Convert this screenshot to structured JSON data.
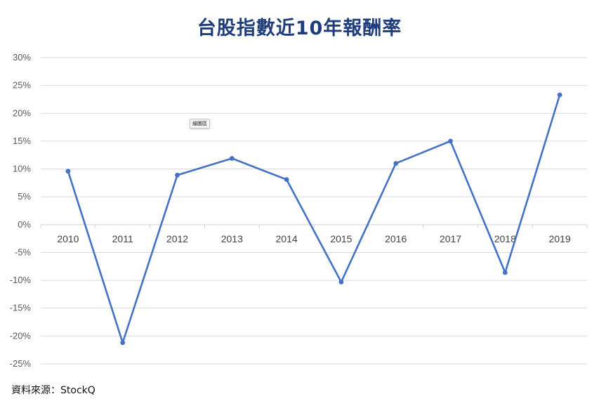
{
  "chart_data": {
    "type": "line",
    "title": "台股指數近10年報酬率",
    "categories": [
      "2010",
      "2011",
      "2012",
      "2013",
      "2014",
      "2015",
      "2016",
      "2017",
      "2018",
      "2019"
    ],
    "series": [
      {
        "values": [
          9.6,
          -21.2,
          8.9,
          11.9,
          8.1,
          -10.3,
          11.0,
          15.0,
          -8.6,
          23.3
        ]
      }
    ],
    "ylim": [
      -25,
      30
    ],
    "yticks": [
      30,
      25,
      20,
      15,
      10,
      5,
      0,
      -5,
      -10,
      -15,
      -20,
      -25
    ],
    "ytick_suffix": "%",
    "grid": true,
    "line_color": "#4472c4",
    "title_color": "#1f3d7a"
  },
  "tooltip": {
    "label": "繪圖區"
  },
  "source": {
    "text": "資料來源：StockQ"
  }
}
